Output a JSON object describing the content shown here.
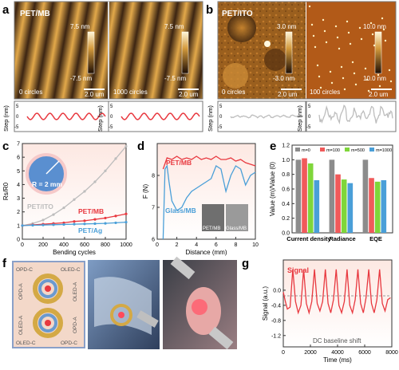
{
  "panels": {
    "a": {
      "letter": "a",
      "title": "PET/MB",
      "left": {
        "scale_top": "7.5 nm",
        "scale_bottom": "-7.5 nm",
        "caption": "0 circles",
        "scalebar": "2.0 um"
      },
      "right": {
        "scale_top": "7.5 nm",
        "scale_bottom": "-7.5 nm",
        "caption": "1000 circles",
        "scalebar": "2.0 um"
      },
      "ylabel": "Step (nm)",
      "ticks": [
        "5",
        "0",
        "-5"
      ],
      "colors": {
        "profile": "#e8383f",
        "afm_dark": "#3b2412",
        "afm_light": "#d49a3c"
      }
    },
    "b": {
      "letter": "b",
      "title": "PET/ITO",
      "left": {
        "scale_top": "3.0 nm",
        "scale_bottom": "-3.0 nm",
        "caption": "0 circles",
        "scalebar": "2.0 um"
      },
      "right": {
        "scale_top": "10.0 nm",
        "scale_bottom": "10.0 nm",
        "caption": "100 circles",
        "scalebar": "2.0 um"
      },
      "ylabel": "Step (nm)",
      "ticks": [
        "5",
        "0",
        "-5"
      ],
      "colors": {
        "profile": "#bdbdbd"
      }
    },
    "c": {
      "letter": "c",
      "inset_text": "R = 2 mm"
    },
    "d": {
      "letter": "d",
      "inset_left": "PET/MB",
      "inset_right": "Glass/MB"
    },
    "e": {
      "letter": "e"
    },
    "f": {
      "letter": "f",
      "labels": [
        "OPD-C",
        "OLED-C",
        "OPD-A",
        "OLED-A",
        "OLED-A",
        "OPD-A",
        "OLED-C",
        "OPD-C"
      ]
    },
    "g": {
      "letter": "g"
    }
  },
  "chart_data": [
    {
      "panel": "c",
      "type": "line",
      "xlabel": "Bending cycles",
      "ylabel": "Rs/R0",
      "xlim": [
        0,
        1000
      ],
      "ylim": [
        0,
        7
      ],
      "xticks": [
        "0",
        "200",
        "400",
        "600",
        "800",
        "1000"
      ],
      "yticks": [
        "0",
        "1",
        "2",
        "3",
        "4",
        "5",
        "6",
        "7"
      ],
      "series": [
        {
          "name": "PET/ITO",
          "color": "#bdbdbd",
          "x": [
            0,
            100,
            200,
            300,
            400,
            500,
            600,
            700,
            800,
            900,
            1000
          ],
          "y": [
            1.0,
            1.15,
            1.4,
            1.8,
            2.3,
            2.9,
            3.5,
            4.2,
            5.0,
            5.9,
            6.8
          ]
        },
        {
          "name": "PET/MB",
          "color": "#e8383f",
          "x": [
            0,
            100,
            200,
            300,
            400,
            500,
            600,
            700,
            800,
            900,
            1000
          ],
          "y": [
            1.0,
            1.05,
            1.1,
            1.15,
            1.2,
            1.3,
            1.35,
            1.45,
            1.55,
            1.7,
            1.85
          ]
        },
        {
          "name": "PET/Ag",
          "color": "#4a9fd8",
          "x": [
            0,
            100,
            200,
            300,
            400,
            500,
            600,
            700,
            800,
            900,
            1000
          ],
          "y": [
            1.0,
            1.02,
            1.04,
            1.06,
            1.08,
            1.1,
            1.12,
            1.14,
            1.16,
            1.2,
            1.25
          ]
        }
      ]
    },
    {
      "panel": "d",
      "type": "line",
      "xlabel": "Distance (mm)",
      "ylabel": "F (N)",
      "xlim": [
        0,
        10
      ],
      "ylim": [
        6,
        9
      ],
      "xticks": [
        "0",
        "2",
        "4",
        "6",
        "8",
        "10"
      ],
      "yticks": [
        "6",
        "7",
        "8"
      ],
      "series": [
        {
          "name": "PET/MB",
          "color": "#e8383f",
          "x": [
            0.6,
            1,
            1.5,
            2,
            2.5,
            3,
            3.5,
            4,
            4.5,
            5,
            5.5,
            6,
            6.5,
            7,
            7.5,
            8,
            8.5,
            9,
            9.5,
            10
          ],
          "y": [
            8.2,
            8.55,
            8.5,
            8.6,
            8.5,
            8.55,
            8.5,
            8.6,
            8.5,
            8.55,
            8.5,
            8.6,
            8.5,
            8.5,
            8.55,
            8.45,
            8.5,
            8.4,
            8.35,
            8.3
          ]
        },
        {
          "name": "Glass/MB",
          "color": "#4a9fd8",
          "x": [
            0.6,
            0.8,
            1,
            1.2,
            1.5,
            2,
            2.5,
            3,
            3.5,
            4,
            4.5,
            5,
            5.5,
            6,
            6.5,
            7,
            7.5,
            8,
            8.5,
            9,
            9.5,
            10
          ],
          "y": [
            6.0,
            8.2,
            8.3,
            7.8,
            7.2,
            6.9,
            7.0,
            7.3,
            7.5,
            7.6,
            7.7,
            7.8,
            7.9,
            8.3,
            8.2,
            7.5,
            8.0,
            8.3,
            8.2,
            7.7,
            8.0,
            8.1
          ]
        }
      ]
    },
    {
      "panel": "e",
      "type": "bar",
      "ylabel": "Value (m)/Value (0)",
      "categories": [
        "Current density",
        "Radiance",
        "EQE"
      ],
      "ylim": [
        0,
        1.2
      ],
      "yticks": [
        "0.0",
        "0.2",
        "0.4",
        "0.6",
        "0.8",
        "1.0",
        "1.2"
      ],
      "legend": "top",
      "series": [
        {
          "name": "m=0",
          "color": "#8c8c8c",
          "values": [
            1.0,
            1.0,
            1.0
          ]
        },
        {
          "name": "m=100",
          "color": "#f05a5a",
          "values": [
            1.02,
            0.8,
            0.75
          ]
        },
        {
          "name": "m=500",
          "color": "#7fd63a",
          "values": [
            0.95,
            0.73,
            0.7
          ]
        },
        {
          "name": "m=1000",
          "color": "#4a9fd8",
          "values": [
            0.72,
            0.68,
            0.72
          ]
        }
      ]
    },
    {
      "panel": "g",
      "type": "line",
      "xlabel": "Time (ms)",
      "ylabel": "Signal (a.u.)",
      "xlim": [
        0,
        8000
      ],
      "ylim": [
        -1.5,
        0.8
      ],
      "xticks": [
        "0",
        "2000",
        "4000",
        "6000",
        "8000"
      ],
      "yticks": [
        "0.0",
        "-0.4",
        "-0.8",
        "-1.2"
      ],
      "annotations": [
        "Signal",
        "DC baseline shift"
      ],
      "series": [
        {
          "name": "Signal",
          "color": "#e8383f",
          "x": [
            0,
            150,
            300,
            500,
            700,
            900,
            1100,
            1300,
            1500,
            1700,
            1900,
            2100,
            2300,
            2500,
            2700,
            2900,
            3100,
            3300,
            3500,
            3700,
            3900,
            4100,
            4300,
            4500,
            4700,
            4900,
            5100,
            5300,
            5500,
            5700,
            5900,
            6100,
            6300,
            6500,
            6700,
            6900,
            7100,
            7300,
            7500,
            7700,
            7900
          ],
          "y": [
            -0.05,
            -0.3,
            -0.5,
            -0.45,
            0.55,
            -0.3,
            -0.6,
            -0.4,
            0.55,
            -0.35,
            -0.6,
            -0.3,
            0.55,
            -0.35,
            -0.55,
            -0.3,
            0.55,
            -0.35,
            -0.6,
            -0.25,
            0.55,
            -0.4,
            -0.6,
            -0.3,
            0.55,
            -0.4,
            -0.6,
            -0.25,
            0.55,
            -0.35,
            -0.6,
            -0.2,
            0.55,
            -0.35,
            -0.6,
            -0.25,
            0.55,
            -0.35,
            -0.55,
            -0.25,
            -0.2
          ]
        }
      ]
    }
  ]
}
